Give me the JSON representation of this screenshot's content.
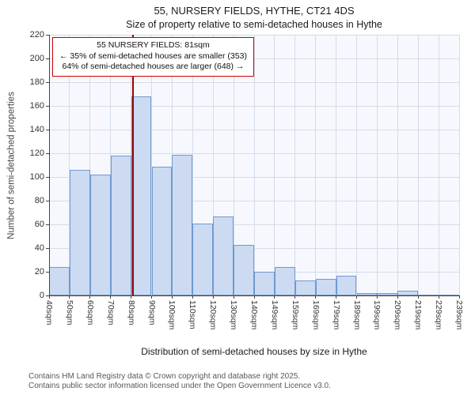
{
  "title": "55, NURSERY FIELDS, HYTHE, CT21 4DS",
  "subtitle": "Size of property relative to semi-detached houses in Hythe",
  "annotation": {
    "line1": "55 NURSERY FIELDS: 81sqm",
    "line2": "← 35% of semi-detached houses are smaller (353)",
    "line3": "64% of semi-detached houses are larger (648) →"
  },
  "footer": {
    "line1": "Contains HM Land Registry data © Crown copyright and database right 2025.",
    "line2": "Contains public sector information licensed under the Open Government Licence v3.0."
  },
  "chart_data": {
    "type": "bar",
    "title": "55, NURSERY FIELDS, HYTHE, CT21 4DS",
    "subtitle": "Size of property relative to semi-detached houses in Hythe",
    "xlabel": "Distribution of semi-detached houses by size in Hythe",
    "ylabel": "Number of semi-detached properties",
    "ylim": [
      0,
      220
    ],
    "ytick_step": 20,
    "grid": true,
    "legend": false,
    "x_tick_labels": [
      "40sqm",
      "50sqm",
      "60sqm",
      "70sqm",
      "80sqm",
      "90sqm",
      "100sqm",
      "110sqm",
      "120sqm",
      "130sqm",
      "140sqm",
      "149sqm",
      "159sqm",
      "169sqm",
      "179sqm",
      "189sqm",
      "199sqm",
      "209sqm",
      "219sqm",
      "229sqm",
      "239sqm"
    ],
    "categories": [
      "40sqm",
      "50sqm",
      "60sqm",
      "70sqm",
      "80sqm",
      "90sqm",
      "100sqm",
      "110sqm",
      "120sqm",
      "130sqm",
      "140sqm",
      "149sqm",
      "159sqm",
      "169sqm",
      "179sqm",
      "189sqm",
      "199sqm",
      "209sqm",
      "219sqm",
      "229sqm"
    ],
    "values": [
      24,
      106,
      102,
      118,
      168,
      109,
      119,
      61,
      67,
      43,
      20,
      24,
      13,
      14,
      17,
      2,
      2,
      4,
      1,
      1
    ],
    "marker": {
      "label": "81sqm",
      "value": 81,
      "bin_position": 4.1
    },
    "colors": {
      "bar_fill": "#ccdaf2",
      "bar_stroke": "#6f9ad0",
      "grid": "#d3dce9",
      "plot_bg": "#f6f8fd",
      "marker": "#a00000",
      "annotation_border": "#cc0000",
      "axis": "#444444"
    }
  }
}
